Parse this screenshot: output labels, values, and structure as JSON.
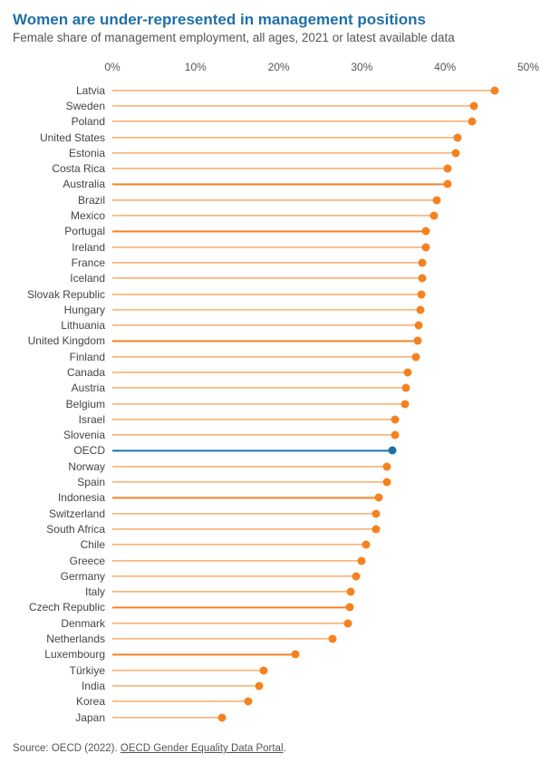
{
  "title": "Women are under-represented in management positions",
  "subtitle": "Female share of management employment, all ages, 2021 or latest available data",
  "chart": {
    "type": "lollipop-horizontal",
    "xlim": [
      0,
      50
    ],
    "xtick_step": 10,
    "xtick_labels": [
      "0%",
      "10%",
      "20%",
      "30%",
      "40%",
      "50%"
    ],
    "background_color": "#ffffff",
    "default_color": "#f58220",
    "highlight_color": "#1f6fa8",
    "stem_width": 1.2,
    "dot_radius": 4.5,
    "label_fontsize": 12,
    "label_color": "#444444",
    "tick_fontsize": 12,
    "tick_color": "#555555",
    "data": [
      {
        "country": "Latvia",
        "value": 46
      },
      {
        "country": "Sweden",
        "value": 43.5
      },
      {
        "country": "Poland",
        "value": 43.2
      },
      {
        "country": "United States",
        "value": 41.5
      },
      {
        "country": "Estonia",
        "value": 41.3
      },
      {
        "country": "Costa Rica",
        "value": 40.3
      },
      {
        "country": "Australia",
        "value": 40.3
      },
      {
        "country": "Brazil",
        "value": 39
      },
      {
        "country": "Mexico",
        "value": 38.7
      },
      {
        "country": "Portugal",
        "value": 37.7
      },
      {
        "country": "Ireland",
        "value": 37.7
      },
      {
        "country": "France",
        "value": 37.3
      },
      {
        "country": "Iceland",
        "value": 37.3
      },
      {
        "country": "Slovak Republic",
        "value": 37.2
      },
      {
        "country": "Hungary",
        "value": 37
      },
      {
        "country": "Lithuania",
        "value": 36.8
      },
      {
        "country": "United Kingdom",
        "value": 36.7
      },
      {
        "country": "Finland",
        "value": 36.5
      },
      {
        "country": "Canada",
        "value": 35.5
      },
      {
        "country": "Austria",
        "value": 35.3
      },
      {
        "country": "Belgium",
        "value": 35.2
      },
      {
        "country": "Israel",
        "value": 34
      },
      {
        "country": "Slovenia",
        "value": 34
      },
      {
        "country": "OECD",
        "value": 33.7,
        "highlight": true
      },
      {
        "country": "Norway",
        "value": 33
      },
      {
        "country": "Spain",
        "value": 33
      },
      {
        "country": "Indonesia",
        "value": 32
      },
      {
        "country": "Switzerland",
        "value": 31.7
      },
      {
        "country": "South Africa",
        "value": 31.7
      },
      {
        "country": "Chile",
        "value": 30.5
      },
      {
        "country": "Greece",
        "value": 30
      },
      {
        "country": "Germany",
        "value": 29.3
      },
      {
        "country": "Italy",
        "value": 28.7
      },
      {
        "country": "Czech Republic",
        "value": 28.5
      },
      {
        "country": "Denmark",
        "value": 28.3
      },
      {
        "country": "Netherlands",
        "value": 26.5
      },
      {
        "country": "Luxembourg",
        "value": 22
      },
      {
        "country": "Türkiye",
        "value": 18.2
      },
      {
        "country": "India",
        "value": 17.7
      },
      {
        "country": "Korea",
        "value": 16.3
      },
      {
        "country": "Japan",
        "value": 13.2
      }
    ]
  },
  "source": {
    "prefix": "Source: OECD (2022). ",
    "link_text": "OECD Gender Equality Data Portal",
    "suffix": "."
  }
}
